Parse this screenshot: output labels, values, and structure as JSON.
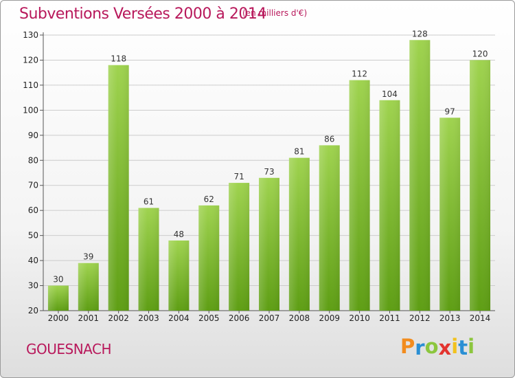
{
  "title": "Subventions Versées 2000 à 2014",
  "subtitle": "(en milliers d'€)",
  "commune": "GOUESNACH",
  "logo": {
    "text": "Proxiti",
    "colors": [
      "#f28c1e",
      "#2a8fd4",
      "#8cc63e",
      "#e3342f",
      "#f2c21e",
      "#2a8fd4",
      "#8cc63e"
    ]
  },
  "colors": {
    "title": "#b8185b",
    "bar_top": "#9fd34f",
    "bar_bottom": "#5e9e14",
    "grid": "#cccccc"
  },
  "chart_data": {
    "type": "bar",
    "title": "Subventions Versées 2000 à 2014",
    "subtitle": "(en milliers d'€)",
    "categories": [
      "2000",
      "2001",
      "2002",
      "2003",
      "2004",
      "2005",
      "2006",
      "2007",
      "2008",
      "2009",
      "2010",
      "2011",
      "2012",
      "2013",
      "2014"
    ],
    "values": [
      30,
      39,
      118,
      61,
      48,
      62,
      71,
      73,
      81,
      86,
      112,
      104,
      128,
      97,
      120
    ],
    "data_labels": [
      "30",
      "39",
      "118",
      "61",
      "48",
      "62",
      "71",
      "73",
      "81",
      "86",
      "112",
      "104",
      "128",
      "97",
      "120"
    ],
    "ylim": [
      20,
      130
    ],
    "yticks": [
      20,
      30,
      40,
      50,
      60,
      70,
      80,
      90,
      100,
      110,
      120,
      130
    ],
    "ytick_labels": [
      "20",
      "30",
      "40",
      "50",
      "60",
      "70",
      "80",
      "90",
      "100",
      "110",
      "120",
      "130"
    ],
    "grid": "horizontal",
    "xlabel": "",
    "ylabel": ""
  }
}
